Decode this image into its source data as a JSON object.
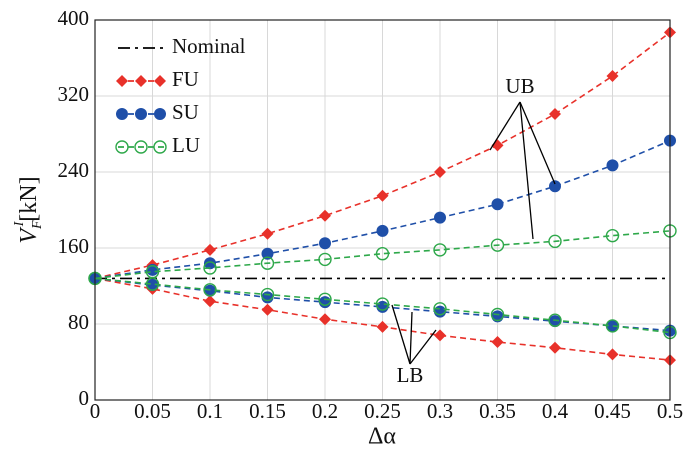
{
  "chart_data": {
    "type": "line",
    "xlabel": "Δα",
    "ylabel": {
      "symbol": "V",
      "subscript": "F",
      "superscript": "I",
      "unit": "[kN]"
    },
    "x": [
      0,
      0.05,
      0.1,
      0.15,
      0.2,
      0.25,
      0.3,
      0.35,
      0.4,
      0.45,
      0.5
    ],
    "xlim": [
      0,
      0.5
    ],
    "xticks": [
      0,
      0.05,
      0.1,
      0.15,
      0.2,
      0.25,
      0.3,
      0.35,
      0.4,
      0.45,
      0.5
    ],
    "ylim": [
      0,
      400
    ],
    "yticks": [
      0,
      80,
      160,
      240,
      320,
      400
    ],
    "grid": true,
    "legend": "upper left",
    "series": [
      {
        "name": "Nominal",
        "color": "#000000",
        "style": "dashdot",
        "marker": "none",
        "values": [
          128,
          128,
          128,
          128,
          128,
          128,
          128,
          128,
          128,
          128,
          128
        ]
      },
      {
        "name": "FU",
        "color": "#e8312a",
        "style": "dashed",
        "marker": "diamond",
        "upper": [
          128,
          142,
          158,
          175,
          194,
          215,
          240,
          268,
          301,
          341,
          387
        ],
        "lower": [
          128,
          117,
          104,
          95,
          85,
          77,
          68,
          61,
          55,
          48,
          42
        ]
      },
      {
        "name": "SU",
        "color": "#1f4fa8",
        "style": "dashed",
        "marker": "circle",
        "upper": [
          128,
          137,
          144,
          154,
          165,
          178,
          192,
          206,
          225,
          247,
          273
        ],
        "lower": [
          128,
          121,
          115,
          108,
          103,
          98,
          93,
          88,
          83,
          78,
          73
        ]
      },
      {
        "name": "LU",
        "color": "#2ea84a",
        "style": "dashed",
        "marker": "open-circle",
        "upper": [
          128,
          135,
          139,
          144,
          148,
          154,
          158,
          163,
          167,
          173,
          178
        ],
        "lower": [
          128,
          122,
          116,
          111,
          106,
          101,
          96,
          90,
          84,
          78,
          71
        ]
      }
    ],
    "annotations": [
      "UB",
      "LB"
    ]
  }
}
